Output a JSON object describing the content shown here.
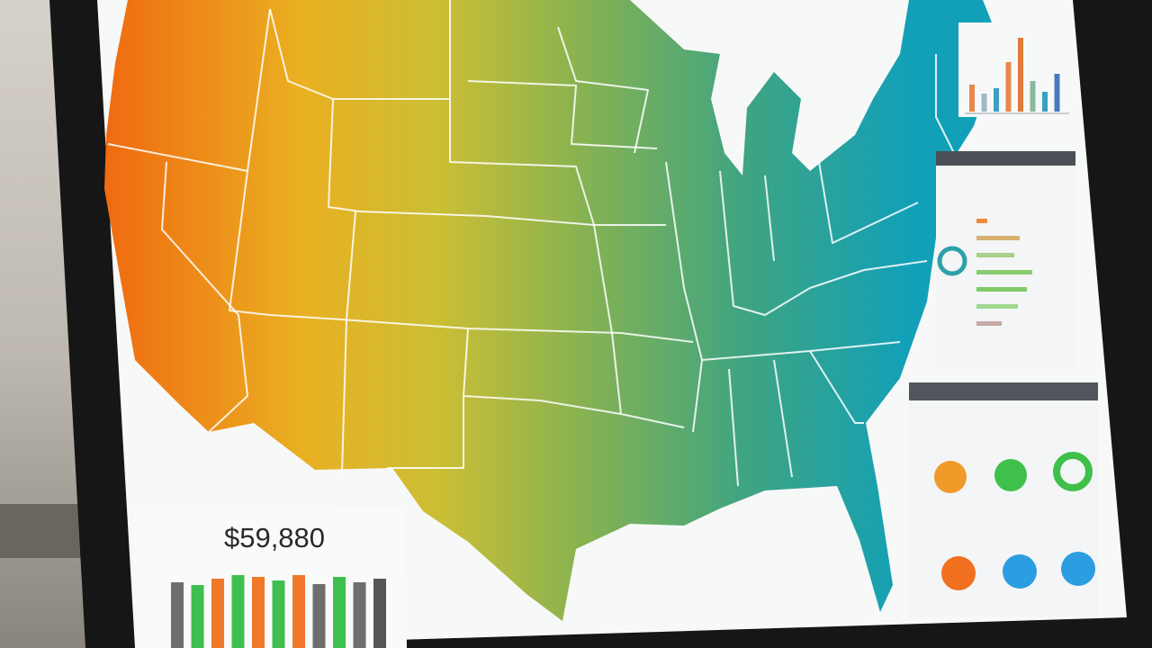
{
  "kpi": {
    "value": "$59,880"
  },
  "bottom_chart": {
    "values": [
      78,
      75,
      82,
      86,
      84,
      80,
      86,
      76,
      84,
      78,
      82
    ],
    "colors": [
      "#6e6e6e",
      "#3fbf4f",
      "#f07828",
      "#3fbf4f",
      "#f07828",
      "#3fbf4f",
      "#f07828",
      "#6e6e6e",
      "#3fbf4f",
      "#6e6e6e",
      "#555555"
    ]
  },
  "top_chart": {
    "values": [
      30,
      20,
      26,
      55,
      82,
      34,
      22,
      42
    ],
    "colors": [
      "#e8884a",
      "#9fb8c8",
      "#3aa0c0",
      "#e8884a",
      "#e07a38",
      "#8ab8a0",
      "#3aa0c0",
      "#4a78c0"
    ]
  },
  "side_bars": {
    "values": [
      12,
      48,
      42,
      62,
      56,
      46,
      28
    ],
    "colors": [
      "#f08a3a",
      "#d8b070",
      "#a8d088",
      "#88cc70",
      "#80c868",
      "#a0d890",
      "#c8a8a8"
    ]
  }
}
